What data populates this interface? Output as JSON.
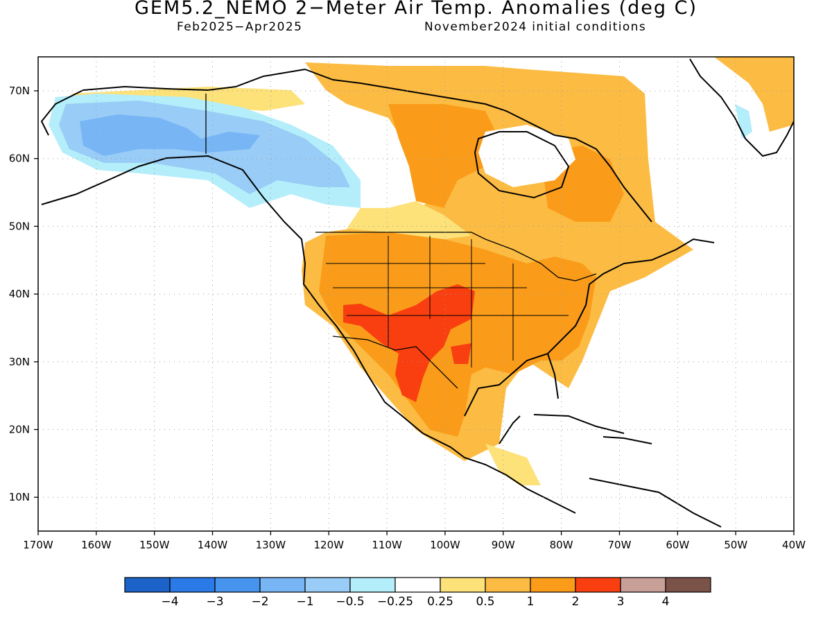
{
  "title": "GEM5.2_NEMO 2−Meter Air Temp. Anomalies (deg C)",
  "subtitle_left": "Feb2025−Apr2025",
  "subtitle_right": "November2024 initial conditions",
  "lon_labels": [
    "170W",
    "160W",
    "150W",
    "140W",
    "130W",
    "120W",
    "110W",
    "100W",
    "90W",
    "80W",
    "70W",
    "60W",
    "50W",
    "40W"
  ],
  "lat_labels": [
    "70N",
    "60N",
    "50N",
    "40N",
    "30N",
    "20N",
    "10N"
  ],
  "colorbar": {
    "colors": [
      "#1b63c9",
      "#2a7ae8",
      "#4794ef",
      "#78b5f5",
      "#99ccf6",
      "#b3eefa",
      "#ffffff",
      "#fde27a",
      "#fcbc43",
      "#fa9c1a",
      "#f93f0f",
      "#c9a098",
      "#7b5247"
    ],
    "labels": [
      "−4",
      "−3",
      "−2",
      "−1",
      "−0.5",
      "−0.25",
      "0.25",
      "0.5",
      "1",
      "2",
      "3",
      "4"
    ]
  }
}
